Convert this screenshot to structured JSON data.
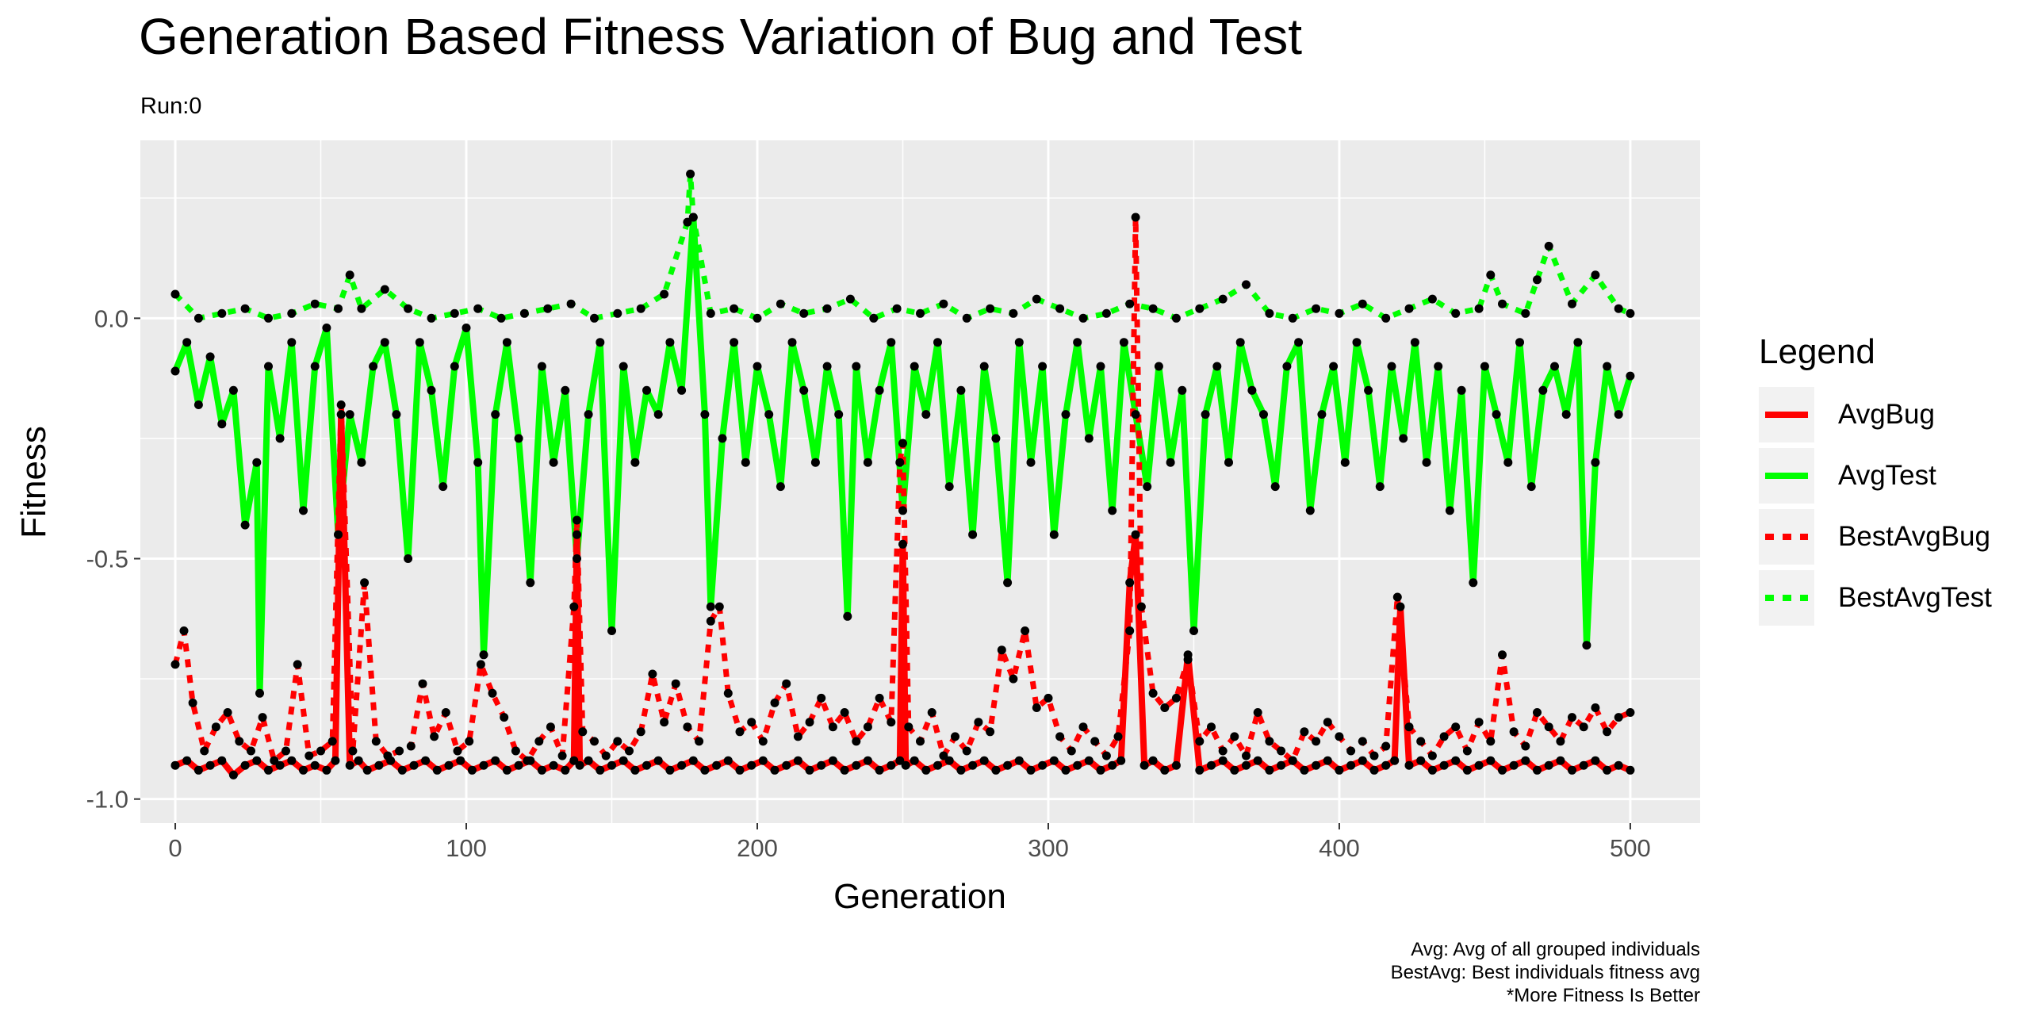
{
  "chart_data": {
    "type": "line",
    "title": "Generation Based Fitness Variation of Bug and Test",
    "subtitle": "Run:0",
    "xlabel": "Generation",
    "ylabel": "Fitness",
    "xlim": [
      -12,
      524
    ],
    "ylim": [
      -1.05,
      0.37
    ],
    "x_ticks": [
      0,
      100,
      200,
      300,
      400,
      500
    ],
    "x_tick_labels": [
      "0",
      "100",
      "200",
      "300",
      "400",
      "500"
    ],
    "y_ticks": [
      -1.0,
      -0.5,
      0.0
    ],
    "y_tick_labels": [
      "-1.0",
      "-0.5",
      "0.0"
    ],
    "grid": true,
    "legend": {
      "title": "Legend",
      "position": "right",
      "entries": [
        "AvgBug",
        "AvgTest",
        "BestAvgBug",
        "BestAvgTest"
      ]
    },
    "caption": [
      "Avg: Avg of all grouped individuals",
      "BestAvg: Best individuals fitness avg",
      "*More Fitness Is Better"
    ],
    "colors": {
      "AvgBug": "#ff0000",
      "AvgTest": "#00ff00",
      "BestAvgBug": "#ff0000",
      "BestAvgTest": "#00ff00",
      "points": "#000000",
      "panel": "#ebebeb",
      "grid": "#ffffff"
    },
    "series": [
      {
        "name": "AvgTest",
        "style": "solid",
        "x": [
          0,
          4,
          8,
          12,
          16,
          20,
          24,
          28,
          29,
          32,
          36,
          40,
          44,
          48,
          52,
          56,
          60,
          64,
          68,
          72,
          76,
          80,
          84,
          88,
          92,
          96,
          100,
          104,
          106,
          110,
          114,
          118,
          122,
          126,
          130,
          134,
          138,
          142,
          146,
          150,
          154,
          158,
          162,
          166,
          170,
          174,
          178,
          182,
          184,
          188,
          192,
          196,
          200,
          204,
          208,
          212,
          216,
          220,
          224,
          228,
          231,
          234,
          238,
          242,
          246,
          250,
          254,
          258,
          262,
          266,
          270,
          274,
          278,
          282,
          286,
          290,
          294,
          298,
          302,
          306,
          310,
          314,
          318,
          322,
          326,
          330,
          334,
          338,
          342,
          346,
          350,
          354,
          358,
          362,
          366,
          370,
          374,
          378,
          382,
          386,
          390,
          394,
          398,
          402,
          406,
          410,
          414,
          418,
          422,
          426,
          430,
          434,
          438,
          442,
          446,
          450,
          454,
          458,
          462,
          466,
          470,
          474,
          478,
          482,
          485,
          488,
          492,
          496,
          500
        ],
        "y": [
          -0.11,
          -0.05,
          -0.18,
          -0.08,
          -0.22,
          -0.15,
          -0.43,
          -0.3,
          -0.78,
          -0.1,
          -0.25,
          -0.05,
          -0.4,
          -0.1,
          -0.02,
          -0.45,
          -0.2,
          -0.3,
          -0.1,
          -0.05,
          -0.2,
          -0.5,
          -0.05,
          -0.15,
          -0.35,
          -0.1,
          -0.02,
          -0.3,
          -0.7,
          -0.2,
          -0.05,
          -0.25,
          -0.55,
          -0.1,
          -0.3,
          -0.15,
          -0.5,
          -0.2,
          -0.05,
          -0.65,
          -0.1,
          -0.3,
          -0.15,
          -0.2,
          -0.05,
          -0.15,
          0.21,
          -0.2,
          -0.6,
          -0.25,
          -0.05,
          -0.3,
          -0.1,
          -0.2,
          -0.35,
          -0.05,
          -0.15,
          -0.3,
          -0.1,
          -0.2,
          -0.62,
          -0.1,
          -0.3,
          -0.15,
          -0.05,
          -0.4,
          -0.1,
          -0.2,
          -0.05,
          -0.35,
          -0.15,
          -0.45,
          -0.1,
          -0.25,
          -0.55,
          -0.05,
          -0.3,
          -0.1,
          -0.45,
          -0.2,
          -0.05,
          -0.25,
          -0.1,
          -0.4,
          -0.05,
          -0.2,
          -0.35,
          -0.1,
          -0.3,
          -0.15,
          -0.65,
          -0.2,
          -0.1,
          -0.3,
          -0.05,
          -0.15,
          -0.2,
          -0.35,
          -0.1,
          -0.05,
          -0.4,
          -0.2,
          -0.1,
          -0.3,
          -0.05,
          -0.15,
          -0.35,
          -0.1,
          -0.25,
          -0.05,
          -0.3,
          -0.1,
          -0.4,
          -0.15,
          -0.55,
          -0.1,
          -0.2,
          -0.3,
          -0.05,
          -0.35,
          -0.15,
          -0.1,
          -0.2,
          -0.05,
          -0.68,
          -0.3,
          -0.1,
          -0.2,
          -0.12
        ]
      },
      {
        "name": "BestAvgTest",
        "style": "dashed",
        "x": [
          0,
          8,
          16,
          24,
          32,
          40,
          48,
          56,
          60,
          64,
          72,
          80,
          88,
          96,
          104,
          112,
          120,
          128,
          136,
          144,
          152,
          160,
          168,
          176,
          177,
          178,
          184,
          192,
          200,
          208,
          216,
          224,
          232,
          240,
          248,
          256,
          264,
          272,
          280,
          288,
          296,
          304,
          312,
          320,
          328,
          336,
          344,
          352,
          360,
          368,
          376,
          384,
          392,
          400,
          408,
          416,
          424,
          432,
          440,
          448,
          452,
          456,
          464,
          468,
          472,
          480,
          488,
          496,
          500
        ],
        "y": [
          0.05,
          0.0,
          0.01,
          0.02,
          0.0,
          0.01,
          0.03,
          0.02,
          0.09,
          0.02,
          0.06,
          0.02,
          0.0,
          0.01,
          0.02,
          0.0,
          0.01,
          0.02,
          0.03,
          0.0,
          0.01,
          0.02,
          0.05,
          0.2,
          0.3,
          0.21,
          0.01,
          0.02,
          0.0,
          0.03,
          0.01,
          0.02,
          0.04,
          0.0,
          0.02,
          0.01,
          0.03,
          0.0,
          0.02,
          0.01,
          0.04,
          0.02,
          0.0,
          0.01,
          0.03,
          0.02,
          0.0,
          0.02,
          0.04,
          0.07,
          0.01,
          0.0,
          0.02,
          0.01,
          0.03,
          0.0,
          0.02,
          0.04,
          0.01,
          0.02,
          0.09,
          0.03,
          0.01,
          0.08,
          0.15,
          0.03,
          0.09,
          0.02,
          0.01
        ]
      },
      {
        "name": "AvgBug",
        "style": "solid",
        "x": [
          0,
          4,
          8,
          12,
          16,
          20,
          24,
          28,
          32,
          36,
          40,
          44,
          48,
          52,
          55,
          57,
          60,
          63,
          66,
          70,
          74,
          78,
          82,
          86,
          90,
          94,
          98,
          102,
          106,
          110,
          114,
          118,
          122,
          126,
          130,
          134,
          137,
          138,
          139,
          142,
          146,
          150,
          154,
          158,
          162,
          166,
          170,
          174,
          178,
          182,
          186,
          190,
          194,
          198,
          202,
          206,
          210,
          214,
          218,
          222,
          226,
          230,
          234,
          238,
          242,
          246,
          249,
          250,
          251,
          254,
          258,
          262,
          266,
          270,
          274,
          278,
          282,
          286,
          290,
          294,
          298,
          302,
          306,
          310,
          314,
          318,
          322,
          325,
          328,
          330,
          333,
          336,
          340,
          344,
          348,
          352,
          356,
          360,
          364,
          368,
          372,
          376,
          380,
          384,
          388,
          392,
          396,
          400,
          404,
          408,
          412,
          416,
          419,
          421,
          424,
          428,
          432,
          436,
          440,
          444,
          448,
          452,
          456,
          460,
          464,
          468,
          472,
          476,
          480,
          484,
          488,
          492,
          496,
          500
        ],
        "y": [
          -0.93,
          -0.92,
          -0.94,
          -0.93,
          -0.92,
          -0.95,
          -0.93,
          -0.92,
          -0.94,
          -0.93,
          -0.92,
          -0.94,
          -0.93,
          -0.94,
          -0.92,
          -0.2,
          -0.93,
          -0.92,
          -0.94,
          -0.93,
          -0.92,
          -0.94,
          -0.93,
          -0.92,
          -0.94,
          -0.93,
          -0.92,
          -0.94,
          -0.93,
          -0.92,
          -0.94,
          -0.93,
          -0.92,
          -0.94,
          -0.93,
          -0.94,
          -0.92,
          -0.45,
          -0.93,
          -0.92,
          -0.94,
          -0.93,
          -0.92,
          -0.94,
          -0.93,
          -0.92,
          -0.94,
          -0.93,
          -0.92,
          -0.94,
          -0.93,
          -0.92,
          -0.94,
          -0.93,
          -0.92,
          -0.94,
          -0.93,
          -0.92,
          -0.94,
          -0.93,
          -0.92,
          -0.94,
          -0.93,
          -0.92,
          -0.94,
          -0.93,
          -0.92,
          -0.47,
          -0.93,
          -0.92,
          -0.94,
          -0.93,
          -0.92,
          -0.94,
          -0.93,
          -0.92,
          -0.94,
          -0.93,
          -0.92,
          -0.94,
          -0.93,
          -0.92,
          -0.94,
          -0.93,
          -0.92,
          -0.94,
          -0.93,
          -0.92,
          -0.55,
          -0.45,
          -0.93,
          -0.92,
          -0.94,
          -0.93,
          -0.7,
          -0.94,
          -0.93,
          -0.92,
          -0.94,
          -0.93,
          -0.92,
          -0.94,
          -0.93,
          -0.92,
          -0.94,
          -0.93,
          -0.92,
          -0.94,
          -0.93,
          -0.92,
          -0.94,
          -0.93,
          -0.92,
          -0.6,
          -0.93,
          -0.92,
          -0.94,
          -0.93,
          -0.92,
          -0.94,
          -0.93,
          -0.92,
          -0.94,
          -0.93,
          -0.92,
          -0.94,
          -0.93,
          -0.92,
          -0.94,
          -0.93,
          -0.92,
          -0.94,
          -0.93,
          -0.94
        ]
      },
      {
        "name": "BestAvgBug",
        "style": "dashed",
        "x": [
          0,
          3,
          6,
          10,
          14,
          18,
          22,
          26,
          30,
          34,
          38,
          42,
          46,
          50,
          54,
          57,
          61,
          65,
          69,
          73,
          77,
          81,
          85,
          89,
          93,
          97,
          101,
          105,
          109,
          113,
          117,
          121,
          125,
          129,
          133,
          137,
          138,
          140,
          144,
          148,
          152,
          156,
          160,
          164,
          168,
          172,
          176,
          180,
          184,
          187,
          190,
          194,
          198,
          202,
          206,
          210,
          214,
          218,
          222,
          226,
          230,
          234,
          238,
          242,
          246,
          249,
          250,
          252,
          256,
          260,
          264,
          268,
          272,
          276,
          280,
          284,
          288,
          292,
          296,
          300,
          304,
          308,
          312,
          316,
          320,
          324,
          328,
          330,
          332,
          336,
          340,
          344,
          348,
          352,
          356,
          360,
          364,
          368,
          372,
          376,
          380,
          384,
          388,
          392,
          396,
          400,
          404,
          408,
          412,
          416,
          420,
          424,
          428,
          432,
          436,
          440,
          444,
          448,
          452,
          456,
          460,
          464,
          468,
          472,
          476,
          480,
          484,
          488,
          492,
          496,
          500
        ],
        "y": [
          -0.72,
          -0.65,
          -0.8,
          -0.9,
          -0.85,
          -0.82,
          -0.88,
          -0.9,
          -0.83,
          -0.92,
          -0.9,
          -0.72,
          -0.91,
          -0.9,
          -0.88,
          -0.18,
          -0.9,
          -0.55,
          -0.88,
          -0.91,
          -0.9,
          -0.89,
          -0.76,
          -0.87,
          -0.82,
          -0.9,
          -0.88,
          -0.72,
          -0.78,
          -0.83,
          -0.9,
          -0.92,
          -0.88,
          -0.85,
          -0.91,
          -0.6,
          -0.42,
          -0.86,
          -0.88,
          -0.91,
          -0.88,
          -0.9,
          -0.86,
          -0.74,
          -0.84,
          -0.76,
          -0.85,
          -0.88,
          -0.63,
          -0.6,
          -0.78,
          -0.86,
          -0.84,
          -0.88,
          -0.8,
          -0.76,
          -0.87,
          -0.84,
          -0.79,
          -0.85,
          -0.82,
          -0.88,
          -0.85,
          -0.79,
          -0.84,
          -0.3,
          -0.26,
          -0.85,
          -0.88,
          -0.82,
          -0.91,
          -0.87,
          -0.9,
          -0.84,
          -0.86,
          -0.69,
          -0.75,
          -0.65,
          -0.81,
          -0.79,
          -0.87,
          -0.9,
          -0.85,
          -0.88,
          -0.91,
          -0.87,
          -0.65,
          0.21,
          -0.6,
          -0.78,
          -0.81,
          -0.79,
          -0.71,
          -0.88,
          -0.85,
          -0.9,
          -0.87,
          -0.91,
          -0.82,
          -0.88,
          -0.9,
          -0.92,
          -0.86,
          -0.88,
          -0.84,
          -0.87,
          -0.9,
          -0.88,
          -0.91,
          -0.89,
          -0.58,
          -0.85,
          -0.88,
          -0.91,
          -0.87,
          -0.85,
          -0.9,
          -0.84,
          -0.88,
          -0.7,
          -0.86,
          -0.89,
          -0.82,
          -0.85,
          -0.88,
          -0.83,
          -0.85,
          -0.81,
          -0.86,
          -0.83,
          -0.82
        ]
      }
    ]
  }
}
